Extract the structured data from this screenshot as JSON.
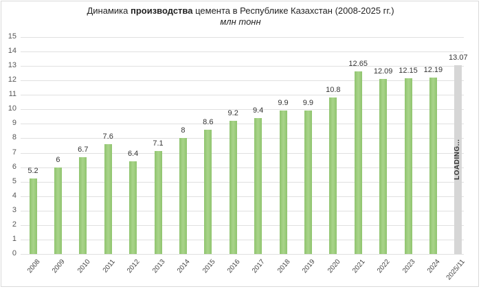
{
  "chart_data": {
    "type": "bar",
    "title_prefix": "Динамика ",
    "title_bold": "производства",
    "title_suffix": " цемента в Республике Казахстан (2008-2025 гг.)",
    "subtitle": "млн тонн",
    "xlabel": "",
    "ylabel": "млн тонн",
    "ylim": [
      0,
      15
    ],
    "yticks": [
      "0",
      "1",
      "2",
      "3",
      "4",
      "5",
      "6",
      "7",
      "8",
      "9",
      "10",
      "11",
      "12",
      "13",
      "14",
      "15"
    ],
    "grid": true,
    "legend": "none",
    "categories": [
      "2008",
      "2009",
      "2010",
      "2011",
      "2012",
      "2013",
      "2014",
      "2015",
      "2016",
      "2017",
      "2018",
      "2019",
      "2020",
      "2021",
      "2022",
      "2023",
      "2024",
      "2025/11"
    ],
    "values": [
      5.2,
      6,
      6.7,
      7.6,
      6.4,
      7.1,
      8,
      8.6,
      9.2,
      9.4,
      9.9,
      9.9,
      10.8,
      12.65,
      12.09,
      12.15,
      12.19,
      13.07
    ],
    "value_labels": [
      "5.2",
      "6",
      "6.7",
      "7.6",
      "6.4",
      "7.1",
      "8",
      "8.6",
      "9.2",
      "9.4",
      "9.9",
      "9.9",
      "10.8",
      "12.65",
      "12.09",
      "12.15",
      "12.19",
      "13.07"
    ],
    "forecast_index": 17,
    "forecast_annotation": "LOADING...",
    "colors": {
      "bar": "#9ccc7c",
      "forecast_bar": "#d6d6d6",
      "grid": "#e0e0e0"
    }
  }
}
